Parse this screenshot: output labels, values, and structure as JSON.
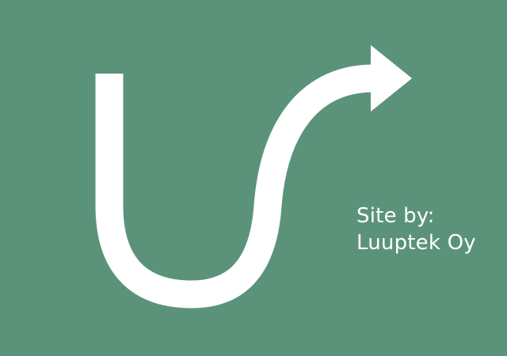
{
  "colors": {
    "background": "#5b937a",
    "foreground": "#ffffff"
  },
  "logo": {
    "icon": "u-turn-arrow-icon"
  },
  "credit": {
    "line1": "Site by:",
    "line2": "Luuptek Oy"
  }
}
